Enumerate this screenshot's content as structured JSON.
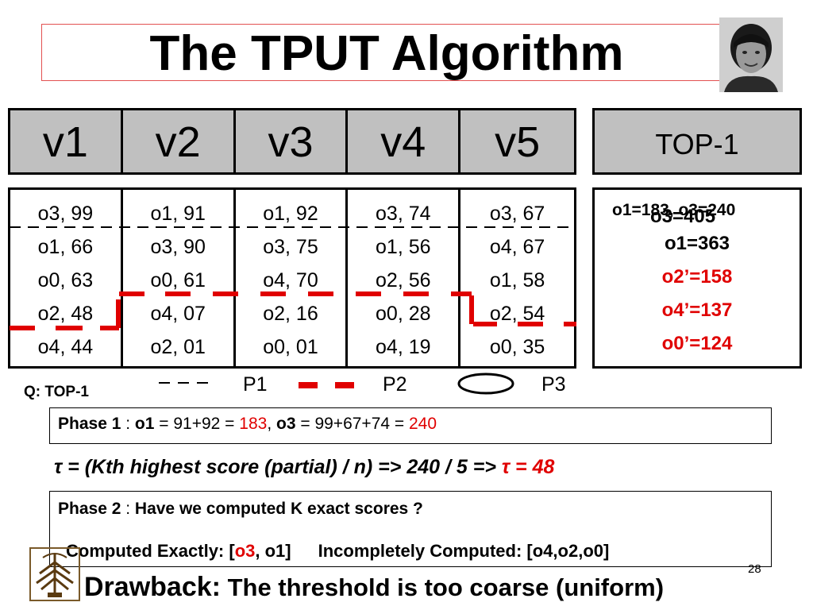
{
  "title": "The TPUT Algorithm",
  "columns": [
    {
      "header": "v1",
      "entries": [
        "o3, 99",
        "o1, 66",
        "o0, 63",
        "o2, 48",
        "o4, 44"
      ]
    },
    {
      "header": "v2",
      "entries": [
        "o1, 91",
        "o3, 90",
        "o0, 61",
        "o4, 07",
        "o2, 01"
      ]
    },
    {
      "header": "v3",
      "entries": [
        "o1, 92",
        "o3, 75",
        "o4, 70",
        "o2, 16",
        "o0, 01"
      ]
    },
    {
      "header": "v4",
      "entries": [
        "o3, 74",
        "o1, 56",
        "o2, 56",
        "o0, 28",
        "o4, 19"
      ]
    },
    {
      "header": "v5",
      "entries": [
        "o3, 67",
        "o4, 67",
        "o1, 58",
        "o2, 54",
        "o0, 35"
      ]
    }
  ],
  "top1_header": "TOP-1",
  "results": {
    "overlap_a": "o1=183, o3=240",
    "overlap_b": "o3=405",
    "line1": "o1=363",
    "line2": "o2’=158",
    "line3": "o4’=137",
    "line4": "o0’=124"
  },
  "query_label": "Q: TOP-1",
  "legend": {
    "p1": "P1",
    "p2": "P2",
    "p3": "P3"
  },
  "phase1": {
    "label": "Phase 1",
    "sep": " : ",
    "o1_label": "o1",
    "o1_expr": " = 91+92 = ",
    "o1_value": "183",
    "comma": ", ",
    "o3_label": "o3",
    "o3_expr": " = 99+67+74 = ",
    "o3_value": "240"
  },
  "tau": {
    "text": "τ = (Kth highest score (partial) / n) => 240 / 5 => ",
    "result": "τ =  48"
  },
  "phase2": {
    "label": "Phase 2",
    "sep": " : ",
    "question": "Have we computed K exact scores ?",
    "computed_prefix": "Computed Exactly: [",
    "computed_red": "o3",
    "computed_rest": ", o1]",
    "incomplete": "Incompletely Computed: [o4,o2,o0]"
  },
  "drawback": {
    "label": "Drawback:",
    "text": " The threshold is too coarse (uniform)"
  },
  "page_number": "28",
  "colors": {
    "accent_red": "#e00000",
    "header_gray": "#c0c0c0",
    "title_border": "#e35050"
  }
}
